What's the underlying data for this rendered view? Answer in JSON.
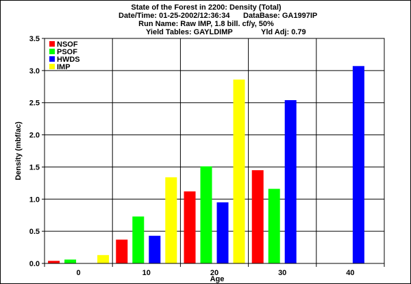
{
  "header": {
    "title": "State of the Forest in 2200: Density (Total)",
    "datetime": "Date/Time: 01-25-2002/12:36:34",
    "database": "DataBase: GA1997IP",
    "run_name": "Run Name: Raw IMP, 1.8 bill. cf/y, 50%",
    "yield_tables": "Yield Tables: GAYLDIMP",
    "yld_adj": "Yld Adj: 0.79"
  },
  "chart_data": {
    "type": "bar",
    "title": "State of the Forest in 2200: Density (Total)",
    "xlabel": "Age",
    "ylabel": "Density (mbf/ac)",
    "categories": [
      "0",
      "10",
      "20",
      "30",
      "40"
    ],
    "ylim": [
      0,
      3.5
    ],
    "yticks": [
      "0.0",
      "0.5",
      "1.0",
      "1.5",
      "2.0",
      "2.5",
      "3.0",
      "3.5"
    ],
    "grid": true,
    "legend_position": "top-left",
    "series": [
      {
        "name": "NSOF",
        "color": "#ff0000",
        "values": [
          0.04,
          0.37,
          1.12,
          1.45,
          0
        ]
      },
      {
        "name": "PSOF",
        "color": "#00ff00",
        "values": [
          0.06,
          0.73,
          1.51,
          1.16,
          0
        ]
      },
      {
        "name": "HWDS",
        "color": "#0000ff",
        "values": [
          0,
          0.43,
          0.95,
          2.54,
          3.07
        ]
      },
      {
        "name": "IMP",
        "color": "#ffff00",
        "values": [
          0.13,
          1.34,
          2.86,
          0,
          0
        ]
      }
    ]
  }
}
